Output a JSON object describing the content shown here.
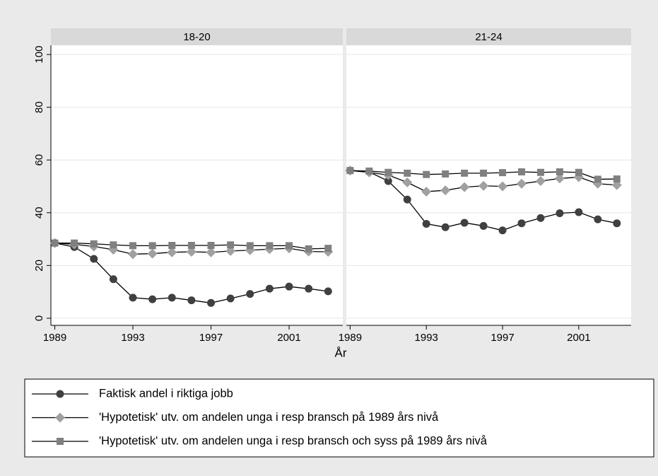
{
  "chart_data": [
    {
      "type": "line",
      "title": "18-20",
      "xlabel": "År",
      "x": [
        1989,
        1990,
        1991,
        1992,
        1993,
        1994,
        1995,
        1996,
        1997,
        1998,
        1999,
        2000,
        2001,
        2002,
        2003
      ],
      "xlim": [
        1988.8,
        2003.75
      ],
      "xticks": [
        1989,
        1993,
        1997,
        2001
      ],
      "ylim": [
        -2.7,
        103.5
      ],
      "yticks": [
        0,
        20,
        40,
        60,
        80,
        100
      ],
      "grid": true,
      "line_color": "#000000",
      "series": [
        {
          "name": "Faktisk andel i riktiga jobb",
          "color": "#404040",
          "marker": "circle",
          "values": [
            28.5,
            27,
            22.5,
            14.8,
            7.8,
            7.2,
            7.8,
            6.8,
            5.8,
            7.5,
            9.2,
            11.2,
            12,
            11.2,
            10.2
          ]
        },
        {
          "name": "'Hypotetisk' utv. om andelen unga i resp bransch på 1989 års nivå",
          "color": "#a0a0a0",
          "marker": "diamond",
          "values": [
            28.5,
            28,
            27.2,
            26,
            24.3,
            24.5,
            25,
            25.2,
            25,
            25.5,
            25.8,
            26.2,
            26.5,
            25.3,
            25.2
          ]
        },
        {
          "name": "'Hypotetisk' utv. om andelen unga  i resp bransch och syss på 1989 års nivå",
          "color": "#808080",
          "marker": "square",
          "values": [
            28.5,
            28.5,
            28.2,
            27.8,
            27.5,
            27.5,
            27.6,
            27.6,
            27.6,
            27.8,
            27.5,
            27.5,
            27.5,
            26.3,
            26.5
          ]
        }
      ]
    },
    {
      "type": "line",
      "title": "21-24",
      "x": [
        1989,
        1990,
        1991,
        1992,
        1993,
        1994,
        1995,
        1996,
        1997,
        1998,
        1999,
        2000,
        2001,
        2002,
        2003
      ],
      "xlim": [
        1988.8,
        2003.75
      ],
      "xticks": [
        1989,
        1993,
        1997,
        2001
      ],
      "ylim": [
        -2.7,
        103.5
      ],
      "yticks": [
        0,
        20,
        40,
        60,
        80,
        100
      ],
      "grid": true,
      "line_color": "#000000",
      "series": [
        {
          "name": "Faktisk andel i riktiga jobb",
          "color": "#404040",
          "marker": "circle",
          "values": [
            56,
            55.5,
            52,
            45,
            35.8,
            34.5,
            36.2,
            35,
            33.3,
            36,
            38,
            39.8,
            40.2,
            37.5,
            36
          ]
        },
        {
          "name": "'Hypotetisk' utv. om andelen unga i resp bransch på 1989 års nivå",
          "color": "#a0a0a0",
          "marker": "diamond",
          "values": [
            56,
            55.3,
            54.3,
            51.5,
            48,
            48.5,
            49.7,
            50.2,
            50,
            51,
            52,
            53,
            53.5,
            51,
            50.5
          ]
        },
        {
          "name": "'Hypotetisk' utv. om andelen unga  i resp bransch och syss på 1989 års nivå",
          "color": "#808080",
          "marker": "square",
          "values": [
            56,
            55.8,
            55.3,
            55,
            54.5,
            54.7,
            55,
            55,
            55.2,
            55.5,
            55.3,
            55.5,
            55.3,
            52.7,
            52.8
          ]
        }
      ]
    }
  ]
}
